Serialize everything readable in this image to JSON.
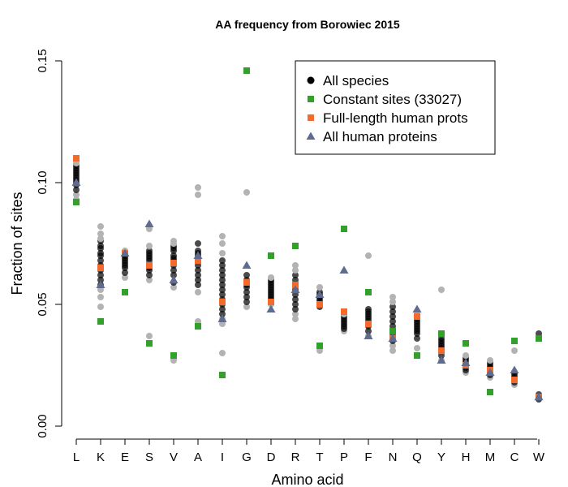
{
  "chart_data": {
    "type": "scatter",
    "title": "AA frequency from Borowiec 2015",
    "xlabel": "Amino acid",
    "ylabel": "Fraction of sites",
    "categories": [
      "L",
      "K",
      "E",
      "S",
      "V",
      "A",
      "I",
      "G",
      "D",
      "R",
      "T",
      "P",
      "F",
      "N",
      "Q",
      "Y",
      "H",
      "M",
      "C",
      "W"
    ],
    "ylim": [
      0.0,
      0.15
    ],
    "yticks": [
      "0.00",
      "0.05",
      "0.10",
      "0.15"
    ],
    "legend_position": "top-right",
    "species_colors": {
      "inner": "#000000",
      "outer": "#b3b3b3"
    },
    "all_species": [
      [
        0.093,
        0.095,
        0.097,
        0.099,
        0.1,
        0.101,
        0.102,
        0.103,
        0.104,
        0.105,
        0.106,
        0.107,
        0.108,
        0.109
      ],
      [
        0.049,
        0.053,
        0.056,
        0.058,
        0.06,
        0.062,
        0.064,
        0.065,
        0.066,
        0.068,
        0.07,
        0.071,
        0.073,
        0.074,
        0.076,
        0.077,
        0.079,
        0.082
      ],
      [
        0.061,
        0.063,
        0.065,
        0.066,
        0.067,
        0.068,
        0.069,
        0.07,
        0.071,
        0.072
      ],
      [
        0.037,
        0.06,
        0.062,
        0.064,
        0.065,
        0.066,
        0.068,
        0.069,
        0.07,
        0.071,
        0.072,
        0.074,
        0.081
      ],
      [
        0.027,
        0.057,
        0.059,
        0.062,
        0.064,
        0.066,
        0.067,
        0.068,
        0.069,
        0.07,
        0.072,
        0.073,
        0.074,
        0.075,
        0.076
      ],
      [
        0.043,
        0.055,
        0.058,
        0.06,
        0.062,
        0.064,
        0.066,
        0.068,
        0.07,
        0.071,
        0.072,
        0.075,
        0.095,
        0.098
      ],
      [
        0.03,
        0.042,
        0.044,
        0.046,
        0.048,
        0.05,
        0.052,
        0.054,
        0.056,
        0.058,
        0.06,
        0.062,
        0.064,
        0.066,
        0.068,
        0.071,
        0.075,
        0.078
      ],
      [
        0.049,
        0.051,
        0.053,
        0.055,
        0.057,
        0.058,
        0.059,
        0.06,
        0.062,
        0.096
      ],
      [
        0.05,
        0.052,
        0.053,
        0.054,
        0.055,
        0.056,
        0.057,
        0.058,
        0.059,
        0.06,
        0.061
      ],
      [
        0.044,
        0.046,
        0.048,
        0.05,
        0.052,
        0.054,
        0.056,
        0.058,
        0.06,
        0.062,
        0.064,
        0.066
      ],
      [
        0.031,
        0.049,
        0.05,
        0.051,
        0.052,
        0.053,
        0.054,
        0.055,
        0.057
      ],
      [
        0.039,
        0.04,
        0.041,
        0.042,
        0.043,
        0.044,
        0.045,
        0.046
      ],
      [
        0.037,
        0.039,
        0.041,
        0.043,
        0.044,
        0.045,
        0.046,
        0.047,
        0.048,
        0.07
      ],
      [
        0.031,
        0.033,
        0.035,
        0.037,
        0.039,
        0.041,
        0.043,
        0.045,
        0.047,
        0.049,
        0.051,
        0.053
      ],
      [
        0.032,
        0.036,
        0.038,
        0.039,
        0.04,
        0.041,
        0.042,
        0.043,
        0.044,
        0.045,
        0.046
      ],
      [
        0.027,
        0.029,
        0.031,
        0.032,
        0.033,
        0.034,
        0.035,
        0.036,
        0.056
      ],
      [
        0.022,
        0.023,
        0.024,
        0.025,
        0.026,
        0.027,
        0.028,
        0.029
      ],
      [
        0.02,
        0.021,
        0.022,
        0.023,
        0.024,
        0.025,
        0.026,
        0.027
      ],
      [
        0.017,
        0.018,
        0.019,
        0.02,
        0.021,
        0.022,
        0.031
      ],
      [
        0.011,
        0.012,
        0.013,
        0.038
      ]
    ],
    "series": [
      {
        "name": "Constant sites (33027)",
        "marker": "square",
        "color": "#33a02c",
        "values": [
          0.092,
          0.043,
          0.055,
          0.034,
          0.029,
          0.041,
          0.021,
          0.146,
          0.07,
          0.074,
          0.033,
          0.081,
          0.055,
          0.039,
          0.029,
          0.038,
          0.034,
          0.014,
          0.035,
          0.036
        ]
      },
      {
        "name": "Full-length human prots",
        "marker": "square",
        "color": "#f26b2c",
        "values": [
          0.11,
          0.065,
          0.071,
          0.066,
          0.067,
          0.068,
          0.051,
          0.059,
          0.051,
          0.058,
          0.05,
          0.047,
          0.042,
          0.036,
          0.045,
          0.031,
          0.025,
          0.023,
          0.019,
          0.012
        ]
      },
      {
        "name": "All human proteins",
        "marker": "triangle",
        "color": "#5f6c8f",
        "values": [
          0.1,
          0.058,
          0.071,
          0.083,
          0.06,
          0.07,
          0.044,
          0.066,
          0.048,
          0.056,
          0.054,
          0.064,
          0.037,
          0.036,
          0.048,
          0.027,
          0.026,
          0.022,
          0.023,
          0.012
        ]
      }
    ],
    "legend": [
      {
        "label": "All species",
        "marker": "circle",
        "color": "#000000"
      },
      {
        "label": "Constant sites (33027)",
        "marker": "square",
        "color": "#33a02c"
      },
      {
        "label": "Full-length human prots",
        "marker": "square",
        "color": "#f26b2c"
      },
      {
        "label": "All human proteins",
        "marker": "triangle",
        "color": "#5f6c8f"
      }
    ]
  }
}
